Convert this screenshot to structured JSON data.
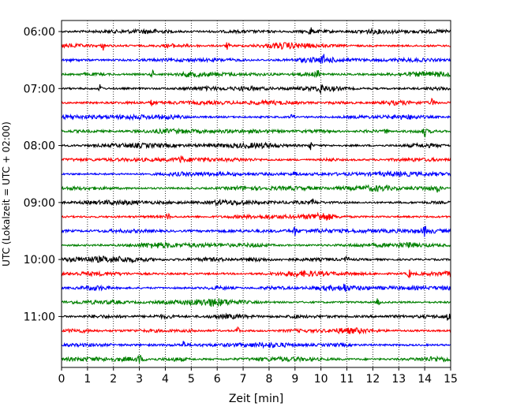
{
  "chart_data": {
    "type": "line",
    "title": "",
    "xlabel": "Zeit  [min]",
    "ylabel": "UTC (Lokalzeit = UTC + 02:00)",
    "xlim": [
      0,
      15
    ],
    "x_ticks": [
      0,
      1,
      2,
      3,
      4,
      5,
      6,
      7,
      8,
      9,
      10,
      11,
      12,
      13,
      14,
      15
    ],
    "x_tick_labels": [
      "0",
      "1",
      "2",
      "3",
      "4",
      "5",
      "6",
      "7",
      "8",
      "9",
      "10",
      "11",
      "12",
      "13",
      "14",
      "15"
    ],
    "y_tick_labels": [
      "06:00",
      "07:00",
      "08:00",
      "09:00",
      "10:00",
      "11:00"
    ],
    "y_tick_rows": [
      0,
      4,
      8,
      12,
      16,
      20
    ],
    "grid": "vertical dotted",
    "row_minutes": 15,
    "rows": 24,
    "trace_colors": [
      "#000000",
      "#ff0000",
      "#0000ff",
      "#008000"
    ],
    "row_start_times": [
      "06:00",
      "06:15",
      "06:30",
      "06:45",
      "07:00",
      "07:15",
      "07:30",
      "07:45",
      "08:00",
      "08:15",
      "08:30",
      "08:45",
      "09:00",
      "09:15",
      "09:30",
      "09:45",
      "10:00",
      "10:15",
      "10:30",
      "10:45",
      "11:00",
      "11:15",
      "11:30",
      "11:45"
    ],
    "event_times_min": [
      [
        9.6
      ],
      [
        1.6,
        6.4
      ],
      [
        10.1
      ],
      [
        3.5,
        9.9
      ],
      [
        1.5,
        10.0
      ],
      [
        3.5,
        14.3
      ],
      [
        8.9
      ],
      [
        14.0,
        12.5
      ],
      [
        9.6
      ],
      [
        4.6
      ],
      [
        9.0
      ],
      [
        14.5
      ],
      [
        9.7
      ],
      [
        4.1
      ],
      [
        9.0,
        14.0
      ],
      [
        13.4
      ],
      [
        11.0
      ],
      [
        13.4
      ],
      [
        10.9
      ],
      [
        12.2
      ],
      [
        14.9,
        9.0
      ],
      [
        6.8
      ],
      [
        4.7
      ],
      [
        3.0
      ]
    ]
  }
}
